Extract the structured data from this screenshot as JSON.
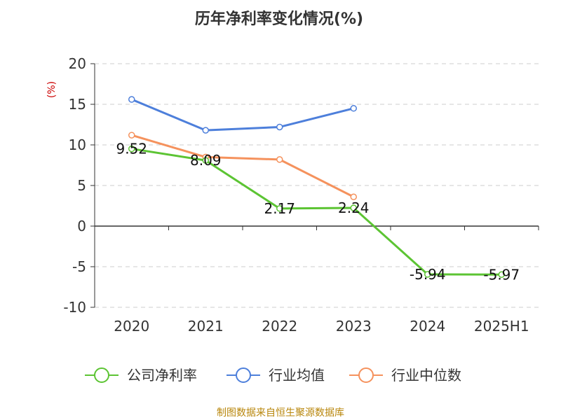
{
  "chart_data": {
    "type": "line",
    "title": "历年净利率变化情况(%)",
    "ylabel": "(%)",
    "xlabel": "",
    "categories": [
      "2020",
      "2021",
      "2022",
      "2023",
      "2024",
      "2025H1"
    ],
    "ylim": [
      -10,
      20
    ],
    "yticks": [
      20,
      15,
      10,
      5,
      0,
      -5,
      -10
    ],
    "grid": true,
    "legend_position": "bottom",
    "series": [
      {
        "name": "公司净利率",
        "color": "#5cc433",
        "values": [
          9.52,
          8.09,
          2.17,
          2.24,
          -5.94,
          -5.97
        ],
        "labels": [
          "9.52",
          "8.09",
          "2.17",
          "2.24",
          "-5.94",
          "-5.97"
        ]
      },
      {
        "name": "行业均值",
        "color": "#4d7fdb",
        "values": [
          15.6,
          11.8,
          12.2,
          14.5,
          null,
          null
        ]
      },
      {
        "name": "行业中位数",
        "color": "#f5925d",
        "values": [
          11.2,
          8.5,
          8.2,
          3.6,
          null,
          null
        ]
      }
    ]
  },
  "source_text": "制图数据来自恒生聚源数据库"
}
